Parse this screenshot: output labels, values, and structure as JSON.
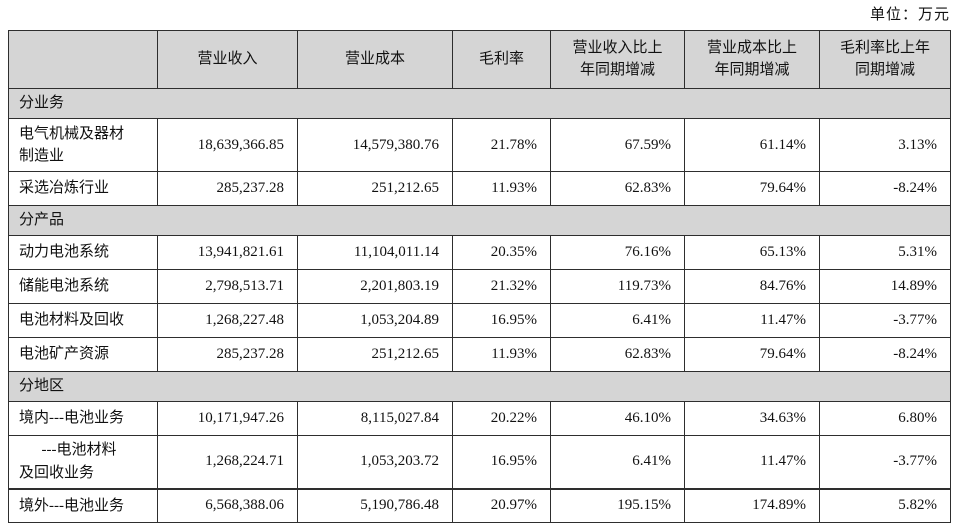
{
  "unit_label": "单位：万元",
  "table": {
    "columns": [
      "",
      "营业收入",
      "营业成本",
      "毛利率",
      "营业收入比上\n年同期增减",
      "营业成本比上\n年同期增减",
      "毛利率比上年\n同期增减"
    ],
    "column_keys": [
      "category",
      "revenue",
      "cost",
      "gross-margin",
      "revenue-yoy-change",
      "cost-yoy-change",
      "gross-margin-yoy-change"
    ],
    "rows": [
      {
        "type": "section",
        "label": "分业务"
      },
      {
        "type": "data",
        "label": "电气机械及器材\n制造业",
        "values": [
          "18,639,366.85",
          "14,579,380.76",
          "21.78%",
          "67.59%",
          "61.14%",
          "3.13%"
        ]
      },
      {
        "type": "data",
        "label": "采选冶炼行业",
        "values": [
          "285,237.28",
          "251,212.65",
          "11.93%",
          "62.83%",
          "79.64%",
          "-8.24%"
        ]
      },
      {
        "type": "section",
        "label": "分产品"
      },
      {
        "type": "data",
        "label": "动力电池系统",
        "values": [
          "13,941,821.61",
          "11,104,011.14",
          "20.35%",
          "76.16%",
          "65.13%",
          "5.31%"
        ]
      },
      {
        "type": "data",
        "label": "储能电池系统",
        "values": [
          "2,798,513.71",
          "2,201,803.19",
          "21.32%",
          "119.73%",
          "84.76%",
          "14.89%"
        ]
      },
      {
        "type": "data",
        "label": "电池材料及回收",
        "values": [
          "1,268,227.48",
          "1,053,204.89",
          "16.95%",
          "6.41%",
          "11.47%",
          "-3.77%"
        ]
      },
      {
        "type": "data",
        "label": "电池矿产资源",
        "values": [
          "285,237.28",
          "251,212.65",
          "11.93%",
          "62.83%",
          "79.64%",
          "-8.24%"
        ]
      },
      {
        "type": "section",
        "label": "分地区"
      },
      {
        "type": "data",
        "label": "境内---电池业务",
        "values": [
          "10,171,947.26",
          "8,115,027.84",
          "20.22%",
          "46.10%",
          "34.63%",
          "6.80%"
        ]
      },
      {
        "type": "data",
        "label": "      ---电池材料\n及回收业务",
        "values": [
          "1,268,224.71",
          "1,053,203.72",
          "16.95%",
          "6.41%",
          "11.47%",
          "-3.77%"
        ]
      },
      {
        "type": "data",
        "label": "境外---电池业务",
        "values": [
          "6,568,388.06",
          "5,190,786.48",
          "20.97%",
          "195.15%",
          "174.89%",
          "5.82%"
        ]
      }
    ]
  }
}
